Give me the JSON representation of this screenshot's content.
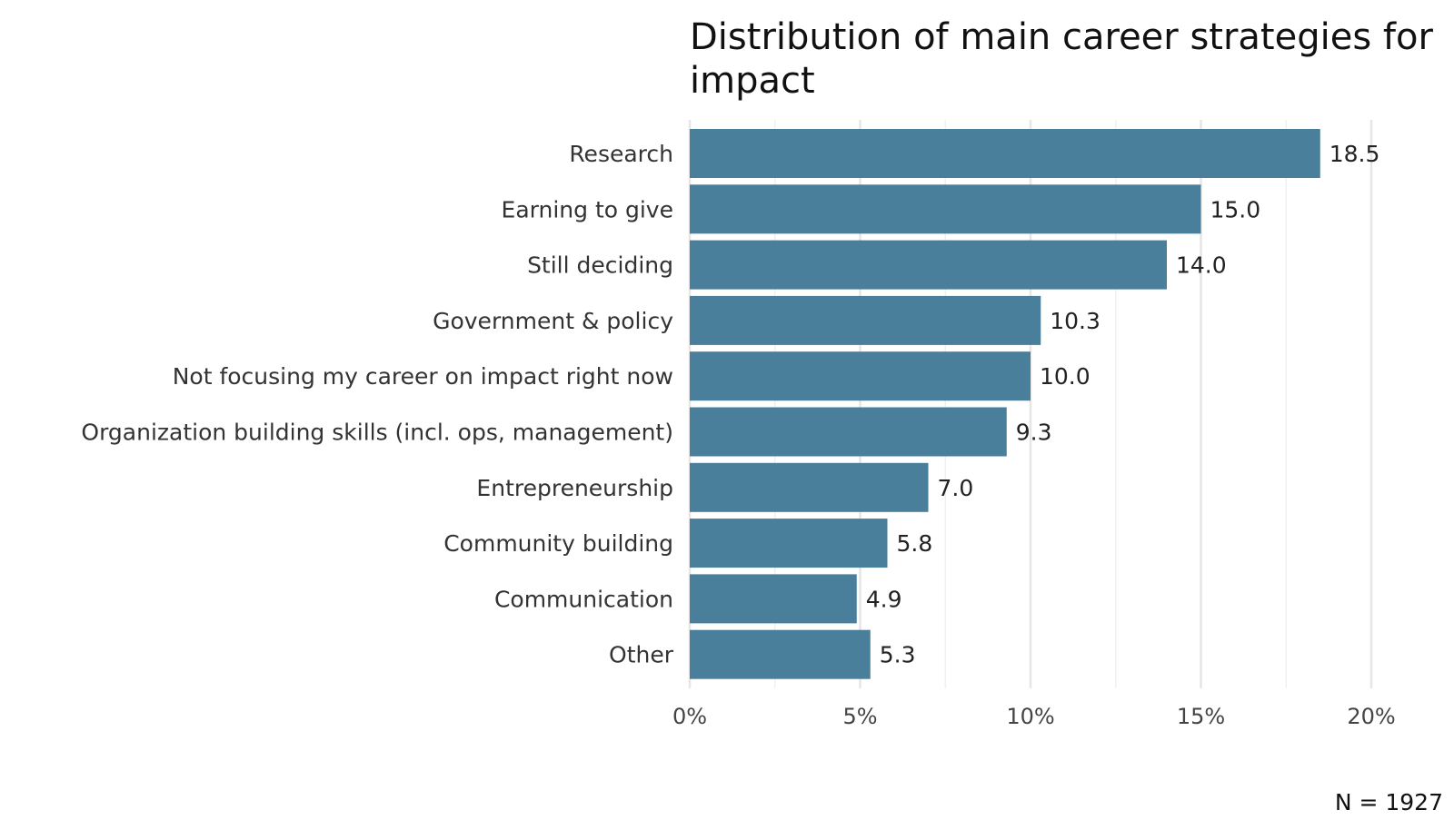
{
  "chart_data": {
    "type": "bar",
    "orientation": "horizontal",
    "title": "Distribution of main career strategies for impact",
    "title_lines": [
      "Distribution of main career strategies for",
      "impact"
    ],
    "categories": [
      "Research",
      "Earning to give",
      "Still deciding",
      "Government & policy",
      "Not focusing my career on impact right now",
      "Organization building skills (incl. ops, management)",
      "Entrepreneurship",
      "Community building",
      "Communication",
      "Other"
    ],
    "values": [
      18.5,
      15.0,
      14.0,
      10.3,
      10.0,
      9.3,
      7.0,
      5.8,
      4.9,
      5.3
    ],
    "value_labels": [
      "18.5",
      "15.0",
      "14.0",
      "10.3",
      "10.0",
      "9.3",
      "7.0",
      "5.8",
      "4.9",
      "5.3"
    ],
    "xlim": [
      0,
      20
    ],
    "xticks": [
      0,
      5,
      10,
      15,
      20
    ],
    "xtick_labels": [
      "0%",
      "5%",
      "10%",
      "15%",
      "20%"
    ],
    "xlabel": "",
    "ylabel": "",
    "grid": true,
    "bar_color": "#4a7f9b",
    "note": "N = 1927"
  }
}
